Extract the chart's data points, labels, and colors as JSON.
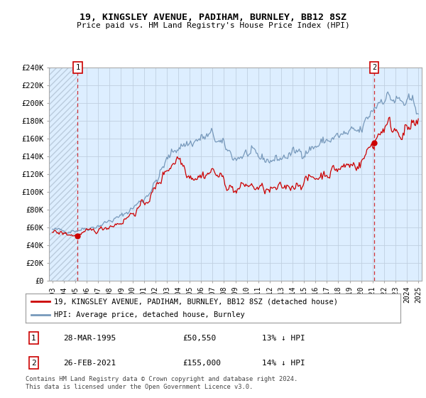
{
  "title": "19, KINGSLEY AVENUE, PADIHAM, BURNLEY, BB12 8SZ",
  "subtitle": "Price paid vs. HM Land Registry's House Price Index (HPI)",
  "ylabel_ticks": [
    "£0",
    "£20K",
    "£40K",
    "£60K",
    "£80K",
    "£100K",
    "£120K",
    "£140K",
    "£160K",
    "£180K",
    "£200K",
    "£220K",
    "£240K"
  ],
  "ytick_values": [
    0,
    20000,
    40000,
    60000,
    80000,
    100000,
    120000,
    140000,
    160000,
    180000,
    200000,
    220000,
    240000
  ],
  "ylim": [
    0,
    240000
  ],
  "sale1_x": 1995.21,
  "sale1_y": 50550,
  "sale2_x": 2021.15,
  "sale2_y": 155000,
  "legend_house": "19, KINGSLEY AVENUE, PADIHAM, BURNLEY, BB12 8SZ (detached house)",
  "legend_hpi": "HPI: Average price, detached house, Burnley",
  "footer": "Contains HM Land Registry data © Crown copyright and database right 2024.\nThis data is licensed under the Open Government Licence v3.0.",
  "house_color": "#cc0000",
  "hpi_color": "#7799bb",
  "chart_bg": "#ddeeff",
  "hatch_color": "#bbccdd",
  "background_color": "#ffffff",
  "grid_color": "#c0d0e0",
  "xlim": [
    1992.7,
    2025.3
  ],
  "xtick_years": [
    1993,
    1994,
    1995,
    1996,
    1997,
    1998,
    1999,
    2000,
    2001,
    2002,
    2003,
    2004,
    2005,
    2006,
    2007,
    2008,
    2009,
    2010,
    2011,
    2012,
    2013,
    2014,
    2015,
    2016,
    2017,
    2018,
    2019,
    2020,
    2021,
    2022,
    2023,
    2024,
    2025
  ]
}
